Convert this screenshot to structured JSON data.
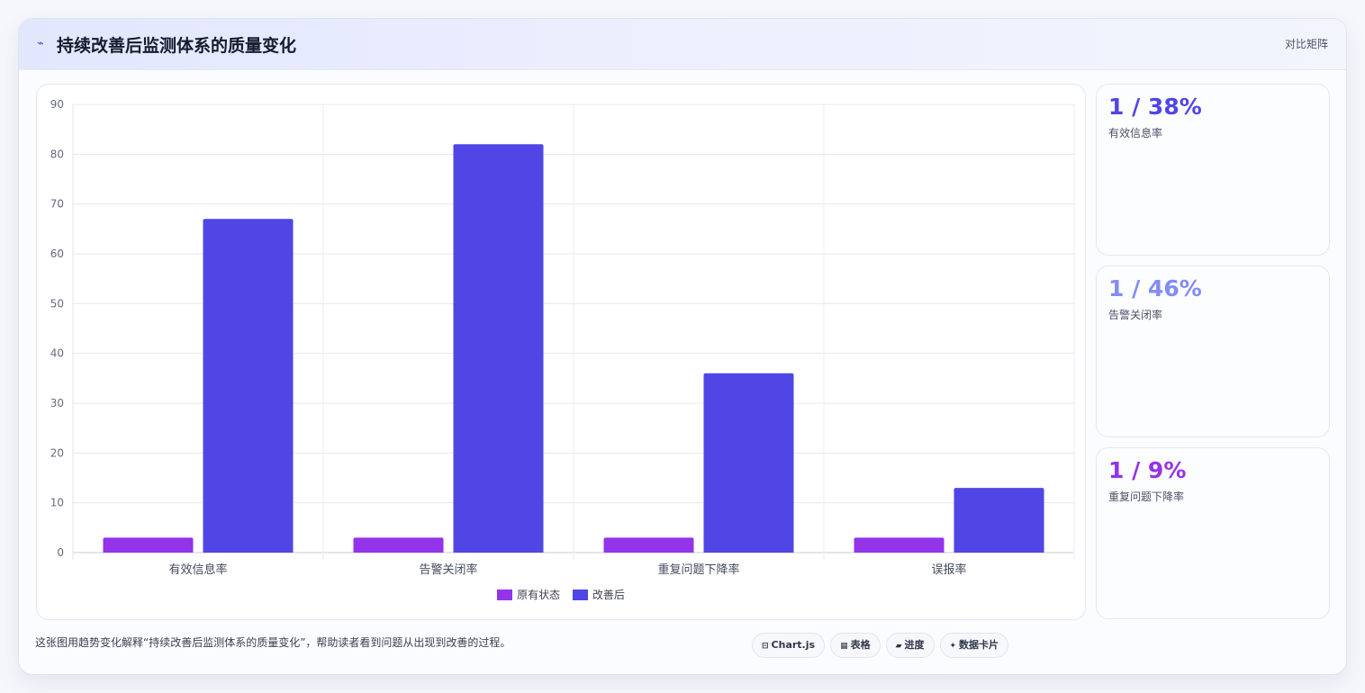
{
  "header": {
    "title_icon": "chart-trend-icon",
    "title": "持续改善后监测体系的质量变化",
    "badge": "对比矩阵"
  },
  "chart_data": {
    "type": "bar",
    "categories": [
      "有效信息率",
      "告警关闭率",
      "重复问题下降率",
      "误报率"
    ],
    "series": [
      {
        "name": "原有状态",
        "values": [
          3,
          3,
          3,
          3
        ],
        "color": "#9333ea"
      },
      {
        "name": "改善后",
        "values": [
          67,
          82,
          36,
          13
        ],
        "color": "#4f46e5"
      }
    ],
    "ylim": [
      0,
      90
    ],
    "yticks": [
      0,
      10,
      20,
      30,
      40,
      50,
      60,
      70,
      80,
      90
    ],
    "grid": true,
    "legend_position": "bottom"
  },
  "stats": [
    {
      "value": "1 / 38%",
      "label": "有效信息率",
      "color": "#4f46e5"
    },
    {
      "value": "1 / 46%",
      "label": "告警关闭率",
      "color": "#818cf8"
    },
    {
      "value": "1 / 9%",
      "label": "重复问题下降率",
      "color": "#9333ea"
    }
  ],
  "caption": "这张图用趋势变化解释“持续改善后监测体系的质量变化”，帮助读者看到问题从出现到改善的过程。",
  "chips": [
    {
      "icon": "⊟",
      "icon_name": "chart-icon",
      "label": "Chart.js"
    },
    {
      "icon": "▦",
      "icon_name": "table-icon",
      "label": "表格"
    },
    {
      "icon": "▰",
      "icon_name": "progress-icon",
      "label": "进度"
    },
    {
      "icon": "✦",
      "icon_name": "sparkle-icon",
      "label": "数据卡片"
    }
  ]
}
